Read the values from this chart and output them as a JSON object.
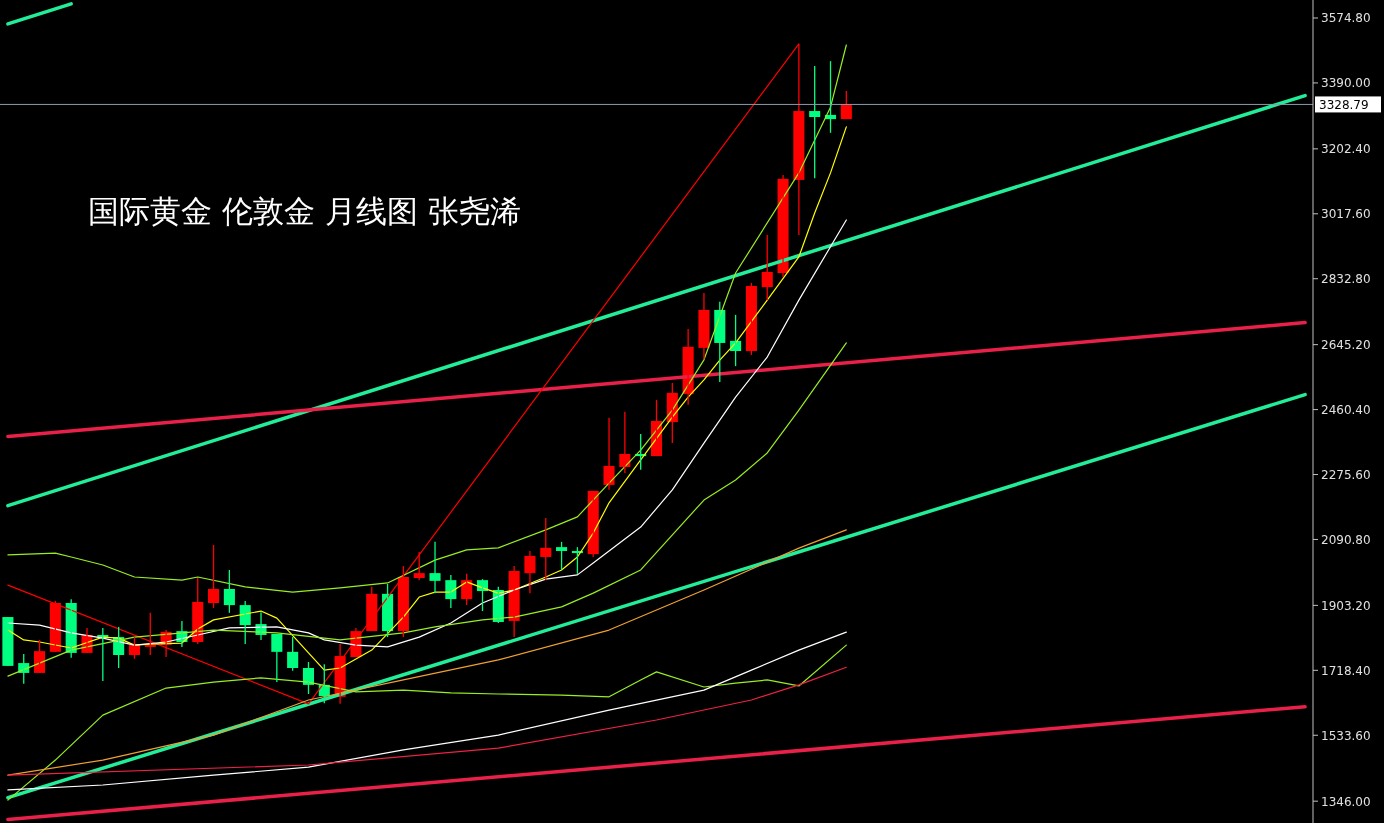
{
  "chart_data": {
    "type": "candlestick",
    "title": "国际黄金 伦敦金 月线图 张尧浠",
    "categories": [
      null,
      null,
      null,
      null,
      null,
      null,
      null,
      null,
      null,
      null,
      null,
      null,
      null,
      null,
      null,
      null,
      null,
      null,
      null,
      null,
      null,
      null,
      null,
      null,
      null,
      null,
      null,
      null,
      null,
      null,
      null,
      null,
      null,
      null,
      null,
      null,
      null,
      null,
      null,
      null,
      null,
      null,
      null,
      null,
      null,
      null,
      null,
      null,
      null,
      null,
      null,
      null,
      null,
      null,
      null,
      null,
      null,
      null,
      null,
      null,
      null,
      null,
      null,
      null,
      null,
      null,
      null,
      null,
      null,
      null,
      null,
      null,
      null,
      null,
      null,
      null,
      null,
      null,
      null,
      null,
      null,
      null,
      null
    ],
    "ohlc": [
      [
        1870,
        1870,
        1731,
        1731
      ],
      [
        1739,
        1765,
        1680,
        1711
      ],
      [
        1711,
        1805,
        1711,
        1773
      ],
      [
        1771,
        1916,
        1771,
        1910
      ],
      [
        1910,
        1921,
        1754,
        1768
      ],
      [
        1768,
        1839,
        1768,
        1819
      ],
      [
        1819,
        1839,
        1688,
        1813
      ],
      [
        1813,
        1842,
        1725,
        1762
      ],
      [
        1762,
        1813,
        1751,
        1791
      ],
      [
        1785,
        1882,
        1762,
        1791
      ],
      [
        1791,
        1833,
        1756,
        1828
      ],
      [
        1830,
        1859,
        1785,
        1799
      ],
      [
        1799,
        1981,
        1793,
        1913
      ],
      [
        1910,
        2075,
        1896,
        1950
      ],
      [
        1950,
        2004,
        1882,
        1904
      ],
      [
        1904,
        1916,
        1793,
        1847
      ],
      [
        1850,
        1884,
        1805,
        1819
      ],
      [
        1822,
        1822,
        1685,
        1771
      ],
      [
        1771,
        1813,
        1717,
        1725
      ],
      [
        1725,
        1742,
        1651,
        1677
      ],
      [
        1677,
        1736,
        1625,
        1645
      ],
      [
        1643,
        1793,
        1623,
        1759
      ],
      [
        1756,
        1839,
        1756,
        1830
      ],
      [
        1830,
        1956,
        1830,
        1936
      ],
      [
        1936,
        1964,
        1813,
        1830
      ],
      [
        1830,
        2015,
        1813,
        1984
      ],
      [
        1981,
        2055,
        1975,
        1995
      ],
      [
        1995,
        2084,
        1938,
        1973
      ],
      [
        1975,
        1990,
        1896,
        1921
      ],
      [
        1921,
        1993,
        1904,
        1975
      ],
      [
        1975,
        1978,
        1887,
        1944
      ],
      [
        1947,
        1956,
        1853,
        1856
      ],
      [
        1859,
        2015,
        1813,
        2001
      ],
      [
        1995,
        2058,
        1938,
        2044
      ],
      [
        2041,
        2152,
        1975,
        2067
      ],
      [
        2069,
        2084,
        2004,
        2058
      ],
      [
        2058,
        2069,
        1993,
        2052
      ],
      [
        2049,
        2229,
        2041,
        2229
      ],
      [
        2246,
        2437,
        2232,
        2300
      ],
      [
        2297,
        2454,
        2280,
        2334
      ],
      [
        2334,
        2391,
        2289,
        2328
      ],
      [
        2328,
        2488,
        2328,
        2428
      ],
      [
        2425,
        2536,
        2365,
        2508
      ],
      [
        2505,
        2690,
        2474,
        2639
      ],
      [
        2636,
        2792,
        2604,
        2744
      ],
      [
        2744,
        2767,
        2539,
        2650
      ],
      [
        2656,
        2730,
        2584,
        2627
      ],
      [
        2627,
        2821,
        2616,
        2812
      ],
      [
        2809,
        2957,
        2772,
        2852
      ],
      [
        2849,
        3128,
        2838,
        3117
      ],
      [
        3114,
        3501,
        2957,
        3310
      ],
      [
        3310,
        3438,
        3119,
        3293
      ],
      [
        3299,
        3452,
        3248,
        3287
      ],
      [
        3287,
        3367,
        3287,
        3330
      ],
      null,
      null,
      null,
      null,
      null,
      null,
      null,
      null,
      null,
      null,
      null,
      null,
      null,
      null,
      null,
      null,
      null,
      null,
      null,
      null,
      null,
      null,
      null,
      null,
      null,
      null,
      null,
      null,
      null
    ],
    "colors": [
      "#00ff80",
      "#00ff80",
      "#ff0000",
      "#ff0000",
      "#00ff80",
      "#ff0000",
      "#00ff80",
      "#00ff80",
      "#ff0000",
      "#ff0000",
      "#ff0000",
      "#00ff80",
      "#ff0000",
      "#ff0000",
      "#00ff80",
      "#00ff80",
      "#00ff80",
      "#00ff80",
      "#00ff80",
      "#00ff80",
      "#00ff80",
      "#ff0000",
      "#ff0000",
      "#ff0000",
      "#00ff80",
      "#ff0000",
      "#ff0000",
      "#00ff80",
      "#00ff80",
      "#ff0000",
      "#00ff80",
      "#00ff80",
      "#ff0000",
      "#ff0000",
      "#ff0000",
      "#00ff80",
      "#00ff80",
      "#ff0000",
      "#ff0000",
      "#ff0000",
      "#00ff80",
      "#ff0000",
      "#ff0000",
      "#ff0000",
      "#ff0000",
      "#00ff80",
      "#00ff80",
      "#ff0000",
      "#ff0000",
      "#ff0000",
      "#ff0000",
      "#00ff80",
      "#00ff80",
      "#ff0000",
      null,
      null,
      null,
      null,
      null,
      null,
      null,
      null,
      null,
      null,
      null,
      null,
      null,
      null,
      null,
      null,
      null,
      null,
      null,
      null,
      null,
      null,
      null,
      null,
      null,
      null,
      null,
      null,
      null
    ],
    "series": [
      {
        "type": "line",
        "color": "#22ee99",
        "values": [
          3558,
          null,
          null,
          null,
          3615,
          null,
          null,
          null,
          null,
          null,
          null,
          null,
          null,
          null,
          null,
          null,
          null,
          null,
          null,
          null,
          null,
          null,
          null,
          null,
          null,
          null,
          null,
          null,
          null,
          null,
          null,
          null,
          null,
          null,
          null,
          null,
          null,
          null,
          null,
          null,
          null,
          null,
          null,
          null,
          null,
          null,
          null,
          null,
          null,
          null,
          null,
          null,
          null,
          null,
          null,
          null,
          null,
          null,
          null,
          null,
          null,
          null,
          null,
          null,
          null,
          null,
          null,
          null,
          null,
          null,
          null,
          null,
          null,
          null,
          null,
          null,
          null,
          null,
          null,
          null,
          null,
          null,
          null
        ]
      },
      {
        "type": "line",
        "color": "#22ee99",
        "values": [
          2187,
          null,
          null,
          null,
          null,
          null,
          null,
          null,
          null,
          null,
          null,
          null,
          null,
          null,
          null,
          null,
          null,
          null,
          null,
          null,
          null,
          null,
          null,
          null,
          null,
          null,
          null,
          null,
          null,
          null,
          null,
          null,
          null,
          null,
          null,
          null,
          null,
          null,
          null,
          null,
          null,
          null,
          null,
          null,
          null,
          null,
          null,
          null,
          null,
          null,
          null,
          null,
          null,
          null,
          null,
          null,
          null,
          null,
          null,
          null,
          null,
          null,
          null,
          null,
          null,
          null,
          null,
          null,
          null,
          null,
          null,
          null,
          null,
          null,
          null,
          null,
          null,
          null,
          null,
          null,
          null,
          null,
          3354
        ]
      },
      {
        "type": "line",
        "color": "#22ee99",
        "values": [
          1356,
          null,
          null,
          null,
          null,
          null,
          null,
          null,
          null,
          null,
          null,
          null,
          null,
          null,
          null,
          null,
          null,
          null,
          null,
          null,
          null,
          null,
          null,
          null,
          null,
          null,
          null,
          null,
          null,
          null,
          null,
          null,
          null,
          null,
          null,
          null,
          null,
          null,
          null,
          null,
          null,
          null,
          null,
          null,
          null,
          null,
          null,
          null,
          null,
          null,
          null,
          null,
          null,
          null,
          null,
          null,
          null,
          null,
          null,
          null,
          null,
          null,
          null,
          null,
          null,
          null,
          null,
          null,
          null,
          null,
          null,
          null,
          null,
          null,
          null,
          null,
          null,
          null,
          null,
          null,
          null,
          null,
          2503
        ]
      },
      {
        "type": "line",
        "color": "#e8204a",
        "values": [
          2384,
          null,
          null,
          null,
          null,
          null,
          null,
          null,
          null,
          null,
          null,
          null,
          null,
          null,
          null,
          null,
          null,
          null,
          null,
          null,
          null,
          null,
          null,
          null,
          null,
          null,
          null,
          null,
          null,
          null,
          null,
          null,
          null,
          null,
          null,
          null,
          null,
          null,
          null,
          null,
          null,
          null,
          null,
          null,
          null,
          null,
          null,
          null,
          null,
          null,
          null,
          null,
          null,
          null,
          null,
          null,
          null,
          null,
          null,
          null,
          null,
          null,
          null,
          null,
          null,
          null,
          null,
          null,
          null,
          null,
          null,
          null,
          null,
          null,
          null,
          null,
          null,
          null,
          null,
          null,
          null,
          null,
          2708
        ]
      },
      {
        "type": "line",
        "color": "#e8204a",
        "values": [
          1294,
          null,
          null,
          null,
          null,
          null,
          null,
          null,
          null,
          null,
          null,
          null,
          null,
          null,
          null,
          null,
          null,
          null,
          null,
          null,
          null,
          null,
          null,
          null,
          null,
          null,
          null,
          null,
          null,
          null,
          null,
          null,
          null,
          null,
          null,
          null,
          null,
          null,
          null,
          null,
          null,
          null,
          null,
          null,
          null,
          null,
          null,
          null,
          null,
          null,
          null,
          null,
          null,
          null,
          null,
          null,
          null,
          null,
          null,
          null,
          null,
          null,
          null,
          null,
          null,
          null,
          null,
          null,
          null,
          null,
          null,
          null,
          null,
          null,
          null,
          null,
          null,
          null,
          null,
          null,
          null,
          null,
          1615
        ]
      },
      {
        "type": "line",
        "color": "#ff0000",
        "values": [
          1961,
          null,
          null,
          null,
          null,
          null,
          null,
          null,
          null,
          null,
          null,
          null,
          null,
          null,
          null,
          null,
          null,
          null,
          null,
          1623,
          null,
          null,
          null,
          null,
          null,
          null,
          null,
          null,
          null,
          null,
          null,
          null,
          null,
          null,
          null,
          null,
          null,
          null,
          null,
          null,
          null,
          null,
          null,
          null,
          null,
          null,
          null,
          null,
          null,
          null,
          3501,
          null,
          null,
          null,
          null,
          null,
          null,
          null,
          null,
          null,
          null,
          null,
          null,
          null,
          null,
          null,
          null,
          null,
          null,
          null,
          null,
          null,
          null,
          null,
          null,
          null,
          null,
          null,
          null,
          null,
          null,
          null,
          null
        ]
      },
      {
        "type": "line",
        "color": "#ffff00",
        "values": [
          1833,
          1805,
          1799,
          null,
          1782,
          null,
          1813,
          1810,
          1790,
          1793,
          null,
          1796,
          1836,
          1862,
          null,
          null,
          1887,
          1867,
          null,
          1768,
          1719,
          1725,
          null,
          1776,
          null,
          1870,
          1927,
          1941,
          1941,
          1970,
          1953,
          1938,
          1947,
          null,
          1984,
          2004,
          2041,
          2109,
          2195,
          null,
          2317,
          null,
          2439,
          2496,
          2545,
          2601,
          2650,
          null,
          2772,
          null,
          2895,
          3020,
          3134,
          3265,
          null,
          null,
          null,
          null,
          null,
          null,
          null,
          null,
          null,
          null,
          null,
          null,
          null,
          null,
          null,
          null,
          null,
          null,
          null,
          null,
          null,
          null,
          null,
          null,
          null,
          null,
          null,
          null,
          null
        ]
      },
      {
        "type": "line",
        "color": "#ffffff",
        "values": [
          1853,
          null,
          1847,
          null,
          1825,
          null,
          1810,
          null,
          1790,
          null,
          1799,
          null,
          1819,
          null,
          1839,
          null,
          null,
          1842,
          null,
          1825,
          1805,
          null,
          1790,
          null,
          1785,
          null,
          1813,
          null,
          1853,
          null,
          1910,
          null,
          1947,
          null,
          1978,
          null,
          1990,
          2024,
          null,
          null,
          2126,
          null,
          2232,
          null,
          2365,
          null,
          2496,
          null,
          2610,
          null,
          2772,
          null,
          null,
          3000,
          null,
          null,
          null,
          null,
          null,
          null,
          null,
          null,
          null,
          null,
          null,
          null,
          null,
          null,
          null,
          null,
          null,
          null,
          null,
          null,
          null,
          null,
          null,
          null,
          null,
          null,
          null,
          null,
          null
        ]
      },
      {
        "type": "line",
        "color": "#99ee22",
        "values": [
          2047,
          null,
          null,
          2052,
          2041,
          null,
          2018,
          null,
          1984,
          null,
          null,
          1975,
          1984,
          null,
          null,
          1956,
          null,
          null,
          1941,
          null,
          null,
          1953,
          null,
          null,
          1967,
          null,
          null,
          2032,
          null,
          2061,
          null,
          2067,
          null,
          null,
          2118,
          null,
          2155,
          null,
          2251,
          null,
          2345,
          null,
          2459,
          null,
          2602,
          null,
          2849,
          null,
          null,
          null,
          3134,
          null,
          3321,
          3498,
          null,
          null,
          null,
          null,
          null,
          null,
          null,
          null,
          null,
          null,
          null,
          null,
          null,
          null,
          null,
          null,
          null,
          null,
          null,
          null,
          null,
          null,
          null,
          null,
          null,
          null,
          null,
          null,
          null
        ]
      },
      {
        "type": "line",
        "color": "#99ee22",
        "values": [
          1702,
          null,
          null,
          null,
          1776,
          null,
          null,
          null,
          1813,
          null,
          null,
          null,
          null,
          1833,
          null,
          null,
          null,
          1825,
          null,
          null,
          null,
          1805,
          null,
          null,
          null,
          1825,
          null,
          1842,
          null,
          null,
          1862,
          null,
          1870,
          null,
          null,
          1899,
          null,
          1938,
          null,
          null,
          2004,
          null,
          null,
          null,
          2203,
          null,
          2260,
          null,
          2337,
          null,
          2459,
          null,
          null,
          2650,
          null,
          null,
          null,
          null,
          null,
          null,
          null,
          null,
          null,
          null,
          null,
          null,
          null,
          null,
          null,
          null,
          null,
          null,
          null,
          null,
          null,
          null,
          null,
          null,
          null,
          null,
          null,
          null,
          null
        ]
      },
      {
        "type": "line",
        "color": "#99ee22",
        "values": [
          1349,
          null,
          null,
          1463,
          null,
          null,
          1591,
          null,
          null,
          null,
          1668,
          null,
          null,
          1685,
          null,
          null,
          1697,
          null,
          null,
          1685,
          null,
          null,
          1657,
          null,
          null,
          1662,
          null,
          null,
          1654,
          null,
          null,
          1651,
          null,
          null,
          null,
          1648,
          null,
          null,
          1643,
          null,
          1691,
          1714,
          null,
          null,
          1671,
          null,
          1682,
          null,
          1691,
          null,
          1674,
          null,
          null,
          1790,
          null,
          null,
          null,
          null,
          null,
          null,
          null,
          null,
          null,
          null,
          null,
          null,
          null,
          null,
          null,
          null,
          null,
          null,
          null,
          null,
          null,
          null,
          null,
          null,
          null,
          null,
          null,
          null,
          null
        ]
      },
      {
        "type": "line",
        "color": "#f0a030",
        "values": [
          1420,
          null,
          null,
          null,
          null,
          null,
          1463,
          null,
          null,
          null,
          null,
          null,
          null,
          1534,
          null,
          null,
          null,
          null,
          null,
          1634,
          null,
          null,
          null,
          null,
          null,
          1691,
          null,
          null,
          null,
          null,
          null,
          1748,
          null,
          null,
          null,
          null,
          null,
          null,
          1833,
          null,
          null,
          null,
          null,
          null,
          1947,
          null,
          null,
          null,
          null,
          null,
          2066,
          null,
          null,
          2118,
          null,
          null,
          null,
          null,
          null,
          null,
          null,
          null,
          null,
          null,
          null,
          null,
          null,
          null,
          null,
          null,
          null,
          null,
          null,
          null,
          null,
          null,
          null,
          null,
          null,
          null,
          null,
          null,
          null
        ]
      },
      {
        "type": "line",
        "color": "#ffffff",
        "values": [
          1378,
          null,
          null,
          null,
          null,
          null,
          1392,
          null,
          null,
          null,
          null,
          null,
          null,
          1420,
          null,
          null,
          null,
          null,
          null,
          1443,
          null,
          null,
          null,
          null,
          null,
          1492,
          null,
          null,
          null,
          null,
          null,
          1534,
          null,
          null,
          null,
          null,
          null,
          null,
          1605,
          null,
          null,
          null,
          null,
          null,
          1662,
          null,
          null,
          1719,
          null,
          null,
          1776,
          null,
          null,
          1827,
          null,
          null,
          null,
          null,
          null,
          null,
          null,
          null,
          null,
          null,
          null,
          null,
          null,
          null,
          null,
          null,
          null,
          null,
          null,
          null,
          null,
          null,
          null,
          null,
          null,
          null,
          null,
          null,
          null
        ]
      },
      {
        "type": "line",
        "color": "#ee2244",
        "values": [
          1420,
          null,
          null,
          null,
          null,
          null,
          null,
          null,
          null,
          null,
          null,
          null,
          null,
          null,
          null,
          null,
          null,
          null,
          null,
          1449,
          null,
          null,
          null,
          null,
          null,
          null,
          null,
          null,
          null,
          null,
          null,
          1497,
          null,
          null,
          null,
          null,
          null,
          null,
          null,
          null,
          null,
          1577,
          null,
          null,
          null,
          null,
          null,
          1634,
          null,
          null,
          1677,
          null,
          null,
          1727,
          null,
          null,
          null,
          null,
          null,
          null,
          null,
          null,
          null,
          null,
          null,
          null,
          null,
          null,
          null,
          null,
          null,
          null,
          null,
          null,
          null,
          null,
          null,
          null,
          null,
          null,
          null,
          null,
          null
        ]
      }
    ],
    "ref_lines": [
      {
        "axis": "y",
        "value": 3328.79,
        "label": "3328.79",
        "color": "#8899aa"
      }
    ],
    "ylim": [
      1283.9,
      3626.0
    ],
    "yticks": [
      {
        "value": 1346,
        "label": "1346.00"
      },
      {
        "value": 1533.6,
        "label": "1533.60"
      },
      {
        "value": 1718.4,
        "label": "1718.40"
      },
      {
        "value": 1903.2,
        "label": "1903.20"
      },
      {
        "value": 2090.8,
        "label": "2090.80"
      },
      {
        "value": 2275.6,
        "label": "2275.60"
      },
      {
        "value": 2460.4,
        "label": "2460.40"
      },
      {
        "value": 2645.2,
        "label": "2645.20"
      },
      {
        "value": 2832.8,
        "label": "2832.80"
      },
      {
        "value": 3017.6,
        "label": "3017.60"
      },
      {
        "value": 3202.4,
        "label": "3202.40"
      },
      {
        "value": 3390,
        "label": "3390.00"
      },
      {
        "value": 3574.8,
        "label": "3574.80"
      }
    ],
    "tick_labels": "y"
  }
}
